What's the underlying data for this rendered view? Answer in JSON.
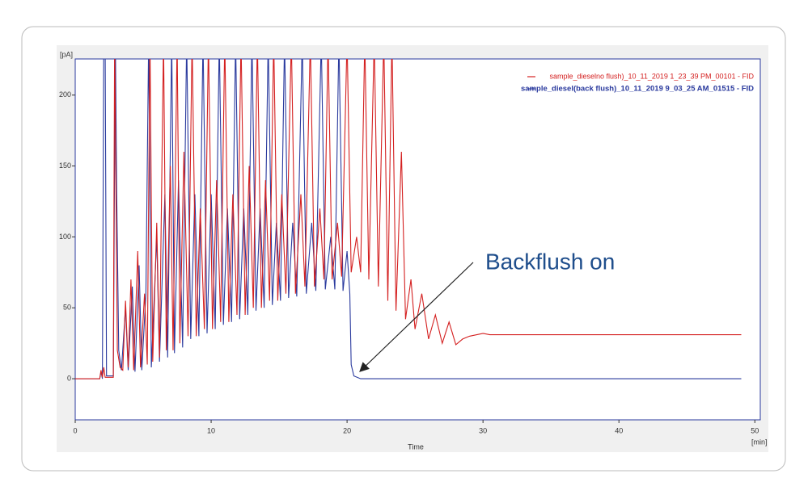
{
  "chart_data": {
    "type": "line",
    "x_label": "Time",
    "x_unit": "[min]",
    "y_unit": "[pA]",
    "annotation": "Backflush on",
    "legend": "top-right",
    "xlim": [
      0,
      50.4
    ],
    "ylim": [
      -29,
      225.5
    ],
    "xticks": [
      0,
      10,
      20,
      30,
      40,
      50
    ],
    "yticks": [
      0,
      50,
      100,
      150,
      200
    ],
    "series": [
      {
        "name": "sample_dieselno flush)_10_11_2019 1_23_39 PM_00101 - FID",
        "color": "#d42020",
        "x": [
          0,
          1.8,
          1.9,
          2.0,
          2.1,
          2.2,
          2.8,
          2.9,
          3.0,
          3.1,
          3.3,
          3.5,
          3.7,
          3.9,
          4.1,
          4.3,
          4.6,
          4.8,
          5.1,
          5.3,
          5.5,
          5.7,
          6.0,
          6.2,
          6.5,
          6.7,
          7.0,
          7.2,
          7.5,
          7.7,
          8.0,
          8.3,
          8.6,
          8.9,
          9.2,
          9.5,
          9.8,
          10.1,
          10.4,
          10.7,
          11.0,
          11.3,
          11.6,
          11.9,
          12.2,
          12.5,
          12.8,
          13.1,
          13.4,
          13.7,
          14.0,
          14.3,
          14.6,
          14.9,
          15.2,
          15.5,
          15.9,
          16.2,
          16.6,
          16.9,
          17.3,
          17.6,
          18.0,
          18.3,
          18.6,
          18.9,
          19.3,
          19.6,
          20.0,
          20.3,
          20.7,
          21.0,
          21.3,
          21.6,
          22.0,
          22.3,
          22.7,
          23.0,
          23.3,
          23.6,
          24.0,
          24.3,
          24.7,
          25.0,
          25.5,
          26.0,
          26.5,
          27.0,
          27.5,
          28.0,
          28.5,
          29.0,
          30.0,
          30.5,
          49.0
        ],
        "values": [
          0,
          0,
          6,
          1,
          8,
          1,
          1,
          240,
          130,
          20,
          8,
          6,
          55,
          8,
          70,
          6,
          90,
          8,
          60,
          10,
          240,
          12,
          110,
          15,
          240,
          20,
          150,
          20,
          240,
          25,
          160,
          30,
          240,
          30,
          120,
          35,
          240,
          35,
          140,
          40,
          240,
          40,
          130,
          45,
          240,
          45,
          150,
          50,
          240,
          50,
          140,
          55,
          240,
          55,
          130,
          60,
          240,
          60,
          130,
          65,
          240,
          65,
          120,
          70,
          240,
          70,
          110,
          72,
          240,
          75,
          100,
          75,
          240,
          70,
          240,
          65,
          240,
          55,
          240,
          48,
          160,
          42,
          70,
          35,
          60,
          28,
          45,
          25,
          40,
          24,
          28,
          30,
          32,
          31,
          31
        ]
      },
      {
        "name": "sample_diesel(back flush)_10_11_2019 9_03_25 AM_01515 - FID",
        "color": "#2a3a9e",
        "x": [
          0,
          1.8,
          1.9,
          2.0,
          2.1,
          2.2,
          2.3,
          2.8,
          2.95,
          3.05,
          3.2,
          3.4,
          3.7,
          3.9,
          4.2,
          4.4,
          4.7,
          4.9,
          5.2,
          5.4,
          5.6,
          6.0,
          6.2,
          6.6,
          6.8,
          7.1,
          7.3,
          7.6,
          7.9,
          8.2,
          8.5,
          8.8,
          9.1,
          9.4,
          9.7,
          10.0,
          10.3,
          10.6,
          10.9,
          11.2,
          11.5,
          11.8,
          12.1,
          12.4,
          12.7,
          13.0,
          13.3,
          13.6,
          13.9,
          14.2,
          14.5,
          14.8,
          15.1,
          15.4,
          15.7,
          16.0,
          16.3,
          16.7,
          17.0,
          17.4,
          17.7,
          18.1,
          18.4,
          18.8,
          19.1,
          19.4,
          19.7,
          20.0,
          20.2,
          20.3,
          20.5,
          21.0,
          49.0
        ],
        "values": [
          0,
          0,
          5,
          0,
          240,
          240,
          2,
          2,
          240,
          130,
          20,
          6,
          50,
          6,
          65,
          5,
          80,
          6,
          60,
          240,
          8,
          100,
          12,
          130,
          15,
          240,
          18,
          140,
          22,
          240,
          28,
          130,
          30,
          240,
          32,
          130,
          35,
          240,
          38,
          120,
          40,
          240,
          42,
          120,
          45,
          240,
          48,
          120,
          50,
          240,
          52,
          110,
          55,
          240,
          57,
          110,
          58,
          240,
          60,
          110,
          62,
          240,
          63,
          100,
          63,
          240,
          62,
          90,
          60,
          10,
          2,
          0,
          0
        ]
      }
    ]
  }
}
